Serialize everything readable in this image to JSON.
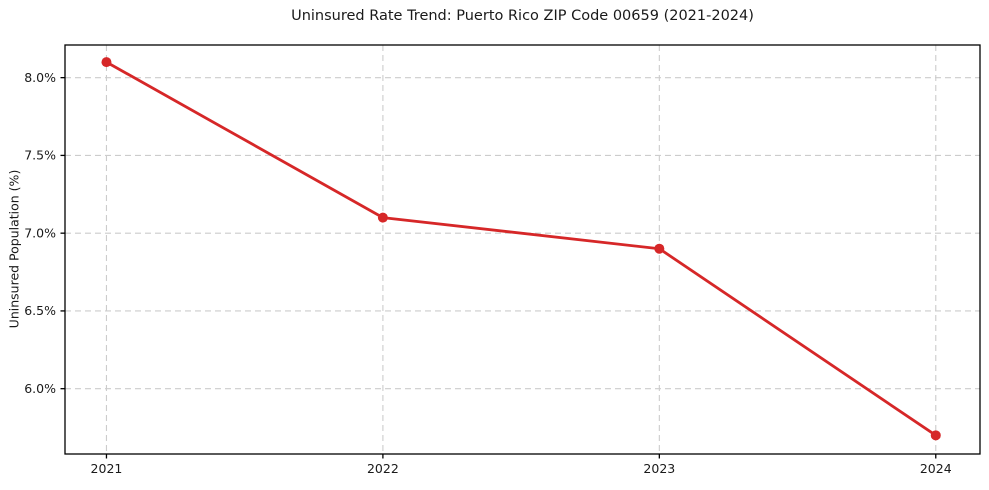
{
  "chart_data": {
    "type": "line",
    "title": "Uninsured Rate Trend: Puerto Rico ZIP Code 00659 (2021-2024)",
    "xlabel": "",
    "ylabel": "Uninsured Population (%)",
    "x": [
      2021,
      2022,
      2023,
      2024
    ],
    "values": [
      8.1,
      7.1,
      6.9,
      5.7
    ],
    "x_tick_labels": [
      "2021",
      "2022",
      "2023",
      "2024"
    ],
    "y_ticks": [
      6.0,
      6.5,
      7.0,
      7.5,
      8.0
    ],
    "y_tick_labels": [
      "6.0%",
      "6.5%",
      "7.0%",
      "7.5%",
      "8.0%"
    ],
    "xlim": [
      2020.85,
      2024.16
    ],
    "ylim": [
      5.58,
      8.21
    ],
    "grid": true,
    "grid_style": "dashed",
    "legend": false,
    "colors": {
      "line": "#d62728",
      "marker": "#d62728",
      "grid": "#cccccc",
      "axis": "#000000",
      "text": "#1a1a1a",
      "background": "#ffffff"
    }
  }
}
